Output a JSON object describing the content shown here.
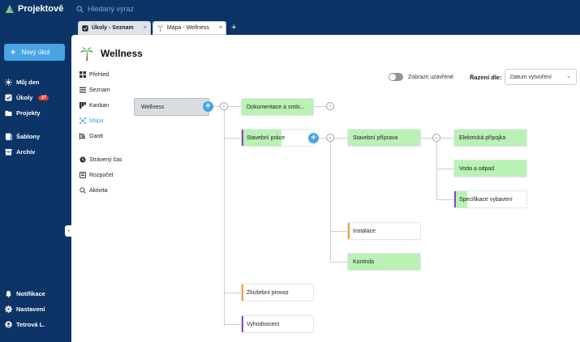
{
  "app": {
    "name": "Projektově"
  },
  "sidebar": {
    "new_task": "Nový úkol",
    "items": [
      {
        "label": "Můj den",
        "icon": "sun-icon"
      },
      {
        "label": "Úkoly",
        "icon": "checkbox-icon",
        "badge": "37"
      },
      {
        "label": "Projekty",
        "icon": "folder-icon"
      },
      {
        "label": "Šablony",
        "icon": "template-icon"
      },
      {
        "label": "Archiv",
        "icon": "archive-icon"
      }
    ],
    "bottom": [
      {
        "label": "Notifikace",
        "icon": "bell-icon"
      },
      {
        "label": "Nastavení",
        "icon": "gear-icon"
      },
      {
        "label": "Tetrová L.",
        "icon": "user-icon"
      }
    ]
  },
  "search": {
    "placeholder": "Hledaný výraz"
  },
  "tabs": [
    {
      "label": "Úkoly - Seznam",
      "icon": "checklist-icon",
      "active": false
    },
    {
      "label": "Mapa - Wellness",
      "icon": "palm-icon",
      "active": true
    }
  ],
  "project": {
    "title": "Wellness"
  },
  "subnav": [
    {
      "label": "Přehled",
      "icon": "overview-icon"
    },
    {
      "label": "Seznam",
      "icon": "list-icon"
    },
    {
      "label": "Kanban",
      "icon": "kanban-icon"
    },
    {
      "label": "Mapa",
      "icon": "map-icon",
      "active": true
    },
    {
      "label": "Gantt",
      "icon": "gantt-icon"
    },
    {
      "label": "Strávený čas",
      "icon": "clock-icon"
    },
    {
      "label": "Rozpočet",
      "icon": "budget-icon"
    },
    {
      "label": "Aktivita",
      "icon": "activity-icon"
    }
  ],
  "toolbar": {
    "show_closed": "Zobrazit uzavřené",
    "sort_label": "Řazení dle:",
    "sort_value": "Datum vytvoření"
  },
  "map": {
    "root": "Wellness",
    "nodes": {
      "dokumentace": "Dokumentace a smlo...",
      "stavebni_prace": "Stavební práce",
      "stavebni_priprava": "Stavební příprava",
      "elektricka": "Elektrická přípojka",
      "voda": "Voda a odpad",
      "specifikace": "Specifikace vybavení",
      "instalace": "Instalace",
      "kontrola": "Kontrola",
      "zkusebni": "Zkušební provoz",
      "vyhodnoceni": "Vyhodnocení"
    },
    "colors": {
      "green": "#b9f2b4",
      "purple": "#8e44c9",
      "orange": "#f0a030",
      "blue": "#4aa4e4"
    }
  }
}
